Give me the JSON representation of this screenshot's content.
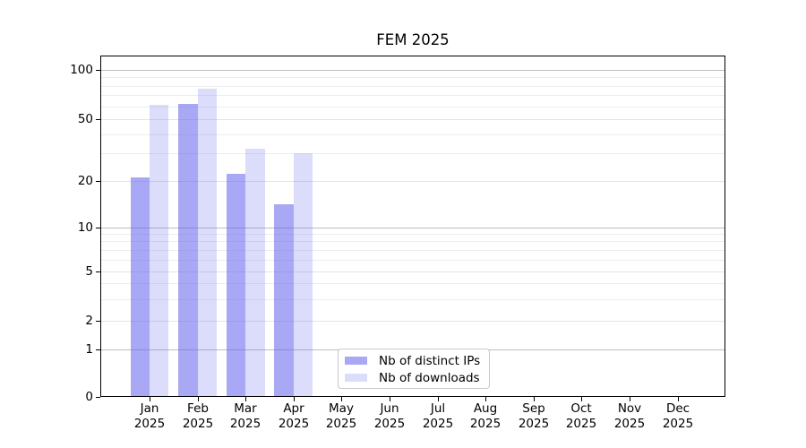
{
  "title": "FEM 2025",
  "chart_data": {
    "type": "bar",
    "title": "FEM 2025",
    "categories": [
      "Jan",
      "Feb",
      "Mar",
      "Apr",
      "May",
      "Jun",
      "Jul",
      "Aug",
      "Sep",
      "Oct",
      "Nov",
      "Dec"
    ],
    "category_year": "2025",
    "series": [
      {
        "name": "Nb of distinct IPs",
        "color": "rgba(102,102,238,0.57)",
        "color_flat": "#a8a8f5",
        "values": [
          21,
          62,
          22,
          14,
          null,
          null,
          null,
          null,
          null,
          null,
          null,
          null
        ]
      },
      {
        "name": "Nb of downloads",
        "color": "rgba(102,102,238,0.23)",
        "color_flat": "#dcdcfb",
        "values": [
          61,
          77,
          32,
          30,
          null,
          null,
          null,
          null,
          null,
          null,
          null,
          null
        ]
      }
    ],
    "y_axis": {
      "scale": "log-like with 0 baseline",
      "tick_labels": [
        "0",
        "1",
        "2",
        "5",
        "10",
        "20",
        "50",
        "100"
      ],
      "tick_values": [
        0,
        1,
        2,
        5,
        10,
        20,
        50,
        100
      ],
      "range_top": 120
    },
    "x_axis": {
      "label_line2": "2025"
    },
    "legend": {
      "position": "inside-bottom-center",
      "entries": [
        "Nb of distinct IPs",
        "Nb of downloads"
      ]
    },
    "grid": "major and minor horizontal gridlines"
  },
  "colors": {
    "grid_major": "#bdbdbd",
    "grid_minor": "#ededed",
    "axis": "#000000",
    "background": "#ffffff"
  }
}
